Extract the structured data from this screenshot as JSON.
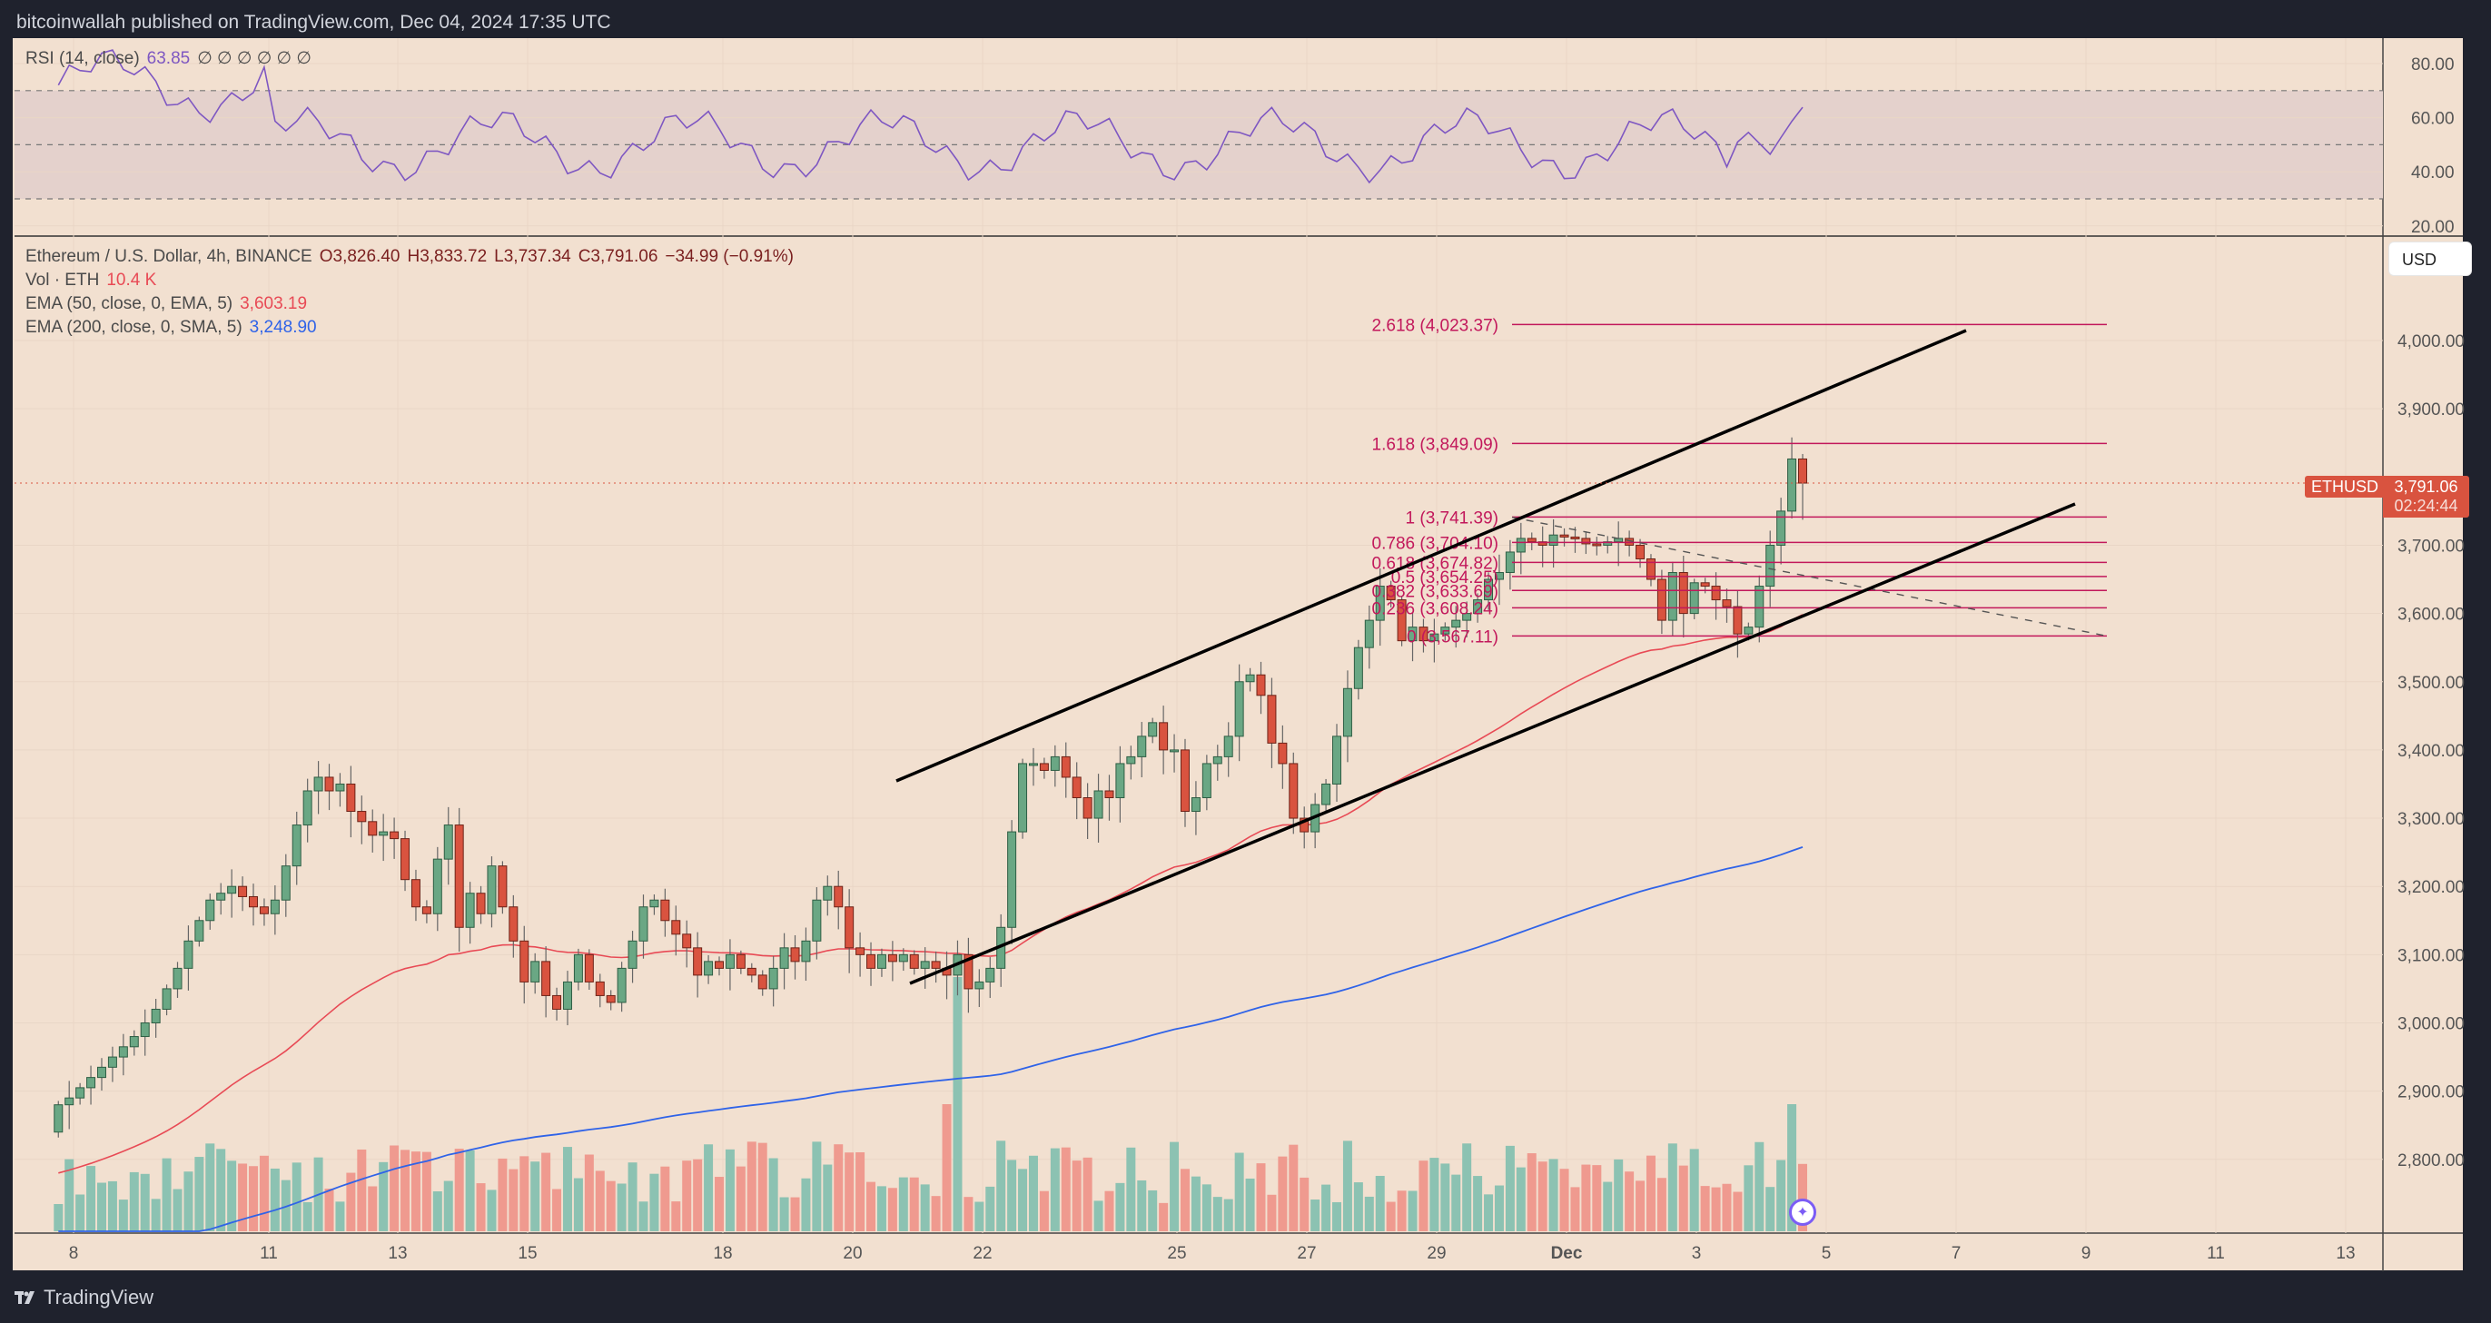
{
  "header": {
    "publish_text": "bitcoinwallah published on TradingView.com, Dec 04, 2024 17:35 UTC"
  },
  "rsi_panel": {
    "label": "RSI (14, close)",
    "value": "63.85",
    "placeholders": "∅ ∅ ∅ ∅ ∅ ∅",
    "axis_ticks": [
      "80.00",
      "60.00",
      "40.00",
      "20.00"
    ],
    "upper_band": 70,
    "middle_band": 50,
    "lower_band": 30
  },
  "main_legend": {
    "symbol": "Ethereum / U.S. Dollar, 4h, BINANCE",
    "open": "O3,826.40",
    "high": "H3,833.72",
    "low": "L3,737.34",
    "close": "C3,791.06",
    "change": "−34.99 (−0.91%)",
    "volume_label": "Vol · ETH",
    "volume_value": "10.4 K",
    "ema50_label": "EMA (50, close, 0, EMA, 5)",
    "ema50_value": "3,603.19",
    "ema200_label": "EMA (200, close, 0, SMA, 5)",
    "ema200_value": "3,248.90"
  },
  "price_axis": {
    "currency_button": "USD",
    "ticks": [
      "4,000.00",
      "3,900.00",
      "3,700.00",
      "3,600.00",
      "3,500.00",
      "3,400.00",
      "3,300.00",
      "3,200.00",
      "3,100.00",
      "3,000.00",
      "2,900.00",
      "2,800.00"
    ],
    "symbol_tag": "ETHUSD",
    "last_price": "3,791.06",
    "countdown": "02:24:44"
  },
  "time_axis": {
    "ticks": [
      "8",
      "11",
      "13",
      "15",
      "18",
      "20",
      "22",
      "25",
      "27",
      "29",
      "Dec",
      "3",
      "5",
      "7",
      "9",
      "11",
      "13"
    ]
  },
  "fib_levels": [
    {
      "label": "2.618 (4,023.37)",
      "price": 4023.37
    },
    {
      "label": "1.618 (3,849.09)",
      "price": 3849.09
    },
    {
      "label": "1 (3,741.39)",
      "price": 3741.39
    },
    {
      "label": "0.786 (3,704.10)",
      "price": 3704.1
    },
    {
      "label": "0.618 (3,674.82)",
      "price": 3674.82
    },
    {
      "label": "0.5 (3,654.25)",
      "price": 3654.25
    },
    {
      "label": "0.382 (3,633.69)",
      "price": 3633.69
    },
    {
      "label": "0.236 (3,608.24)",
      "price": 3608.24
    },
    {
      "label": "0 (3,567.11)",
      "price": 3567.11
    }
  ],
  "colors": {
    "background": "#f2e0d0",
    "up": "#6aa784",
    "down": "#d9533f",
    "vol_up": "#8cc2b2",
    "vol_down": "#ef9a8f",
    "ema50": "#e84a55",
    "ema200": "#2f63e8",
    "rsi": "#7e57c2",
    "fib": "#c2185b",
    "trendline": "#000000"
  },
  "footer": {
    "brand": "TradingView"
  },
  "chart_data": {
    "type": "candlestick",
    "title": "Ethereum / U.S. Dollar, 4h, BINANCE",
    "xlabel": "",
    "ylabel": "USD",
    "ylim": [
      2700,
      4100
    ],
    "x_ticks": [
      "Nov 8",
      "Nov 11",
      "Nov 13",
      "Nov 15",
      "Nov 18",
      "Nov 20",
      "Nov 22",
      "Nov 25",
      "Nov 27",
      "Nov 29",
      "Dec 1",
      "Dec 3",
      "Dec 5",
      "Dec 7",
      "Dec 9",
      "Dec 11",
      "Dec 13"
    ],
    "closes_approx": [
      2880,
      2890,
      2905,
      2920,
      2935,
      2950,
      2965,
      2980,
      3000,
      3020,
      3050,
      3080,
      3120,
      3150,
      3180,
      3190,
      3200,
      3185,
      3170,
      3160,
      3180,
      3230,
      3290,
      3340,
      3360,
      3340,
      3350,
      3310,
      3295,
      3275,
      3280,
      3270,
      3210,
      3170,
      3160,
      3240,
      3290,
      3140,
      3190,
      3160,
      3230,
      3170,
      3120,
      3060,
      3090,
      3040,
      3020,
      3060,
      3100,
      3060,
      3040,
      3030,
      3080,
      3120,
      3170,
      3180,
      3150,
      3130,
      3110,
      3070,
      3090,
      3080,
      3100,
      3080,
      3070,
      3050,
      3080,
      3110,
      3090,
      3120,
      3180,
      3200,
      3170,
      3110,
      3100,
      3080,
      3100,
      3090,
      3100,
      3080,
      3090,
      3080,
      3070,
      3100,
      3050,
      3060,
      3080,
      3140,
      3280,
      3380,
      3380,
      3370,
      3390,
      3360,
      3330,
      3300,
      3340,
      3330,
      3380,
      3390,
      3420,
      3440,
      3400,
      3400,
      3310,
      3330,
      3380,
      3390,
      3420,
      3500,
      3510,
      3480,
      3410,
      3380,
      3300,
      3280,
      3320,
      3350,
      3420,
      3490,
      3550,
      3590,
      3640,
      3620,
      3560,
      3580,
      3560,
      3570,
      3580,
      3590,
      3600,
      3620,
      3650,
      3660,
      3690,
      3710,
      3705,
      3700,
      3715,
      3712,
      3710,
      3702,
      3700,
      3705,
      3710,
      3700,
      3680,
      3650,
      3590,
      3660,
      3600,
      3645,
      3640,
      3620,
      3610,
      3570,
      3580,
      3640,
      3700,
      3750,
      3800,
      3790
    ],
    "series": [
      {
        "name": "EMA 50",
        "last": 3603.19
      },
      {
        "name": "EMA 200",
        "last": 3248.9
      },
      {
        "name": "RSI 14",
        "last": 63.85
      }
    ],
    "last": {
      "open": 3826.4,
      "high": 3833.72,
      "low": 3737.34,
      "close": 3791.06,
      "volume": "10.4K"
    },
    "fibonacci": [
      {
        "level": 2.618,
        "price": 4023.37
      },
      {
        "level": 1.618,
        "price": 3849.09
      },
      {
        "level": 1,
        "price": 3741.39
      },
      {
        "level": 0.786,
        "price": 3704.1
      },
      {
        "level": 0.618,
        "price": 3674.82
      },
      {
        "level": 0.5,
        "price": 3654.25
      },
      {
        "level": 0.382,
        "price": 3633.69
      },
      {
        "level": 0.236,
        "price": 3608.24
      },
      {
        "level": 0,
        "price": 3567.11
      }
    ],
    "channel": {
      "upper": [
        [
          "Nov 20",
          3370
        ],
        [
          "Dec 7",
          4020
        ]
      ],
      "lower": [
        [
          "Nov 20",
          3060
        ],
        [
          "Dec 9",
          3760
        ]
      ]
    }
  }
}
